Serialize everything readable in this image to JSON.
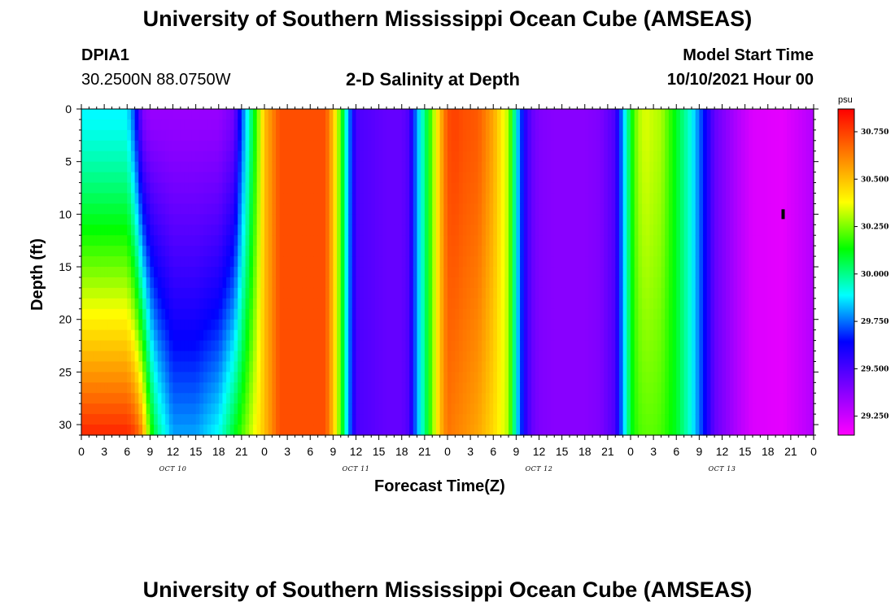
{
  "header": {
    "title": "University of Southern Mississippi Ocean Cube (AMSEAS)",
    "footer_title": "University of Southern Mississippi Ocean Cube (AMSEAS)",
    "station": "DPIA1",
    "coords": "30.2500N  88.0750W",
    "subtitle": "2-D Salinity at Depth",
    "model_start_label": "Model Start Time",
    "model_start_value": "10/10/2021 Hour 00"
  },
  "chart_data": {
    "type": "heatmap",
    "title": "2-D Salinity at Depth",
    "xlabel": "Forecast Time(Z)",
    "ylabel": "Depth (ft)",
    "x_unit": "hours",
    "x_range": [
      0,
      96
    ],
    "ylim": [
      0,
      31
    ],
    "y_inverted": true,
    "y_ticks": [
      0,
      5,
      10,
      15,
      20,
      25,
      30
    ],
    "x_tick_labels": [
      "0",
      "3",
      "6",
      "9",
      "12",
      "15",
      "18",
      "21",
      "0",
      "3",
      "6",
      "9",
      "12",
      "15",
      "18",
      "21",
      "0",
      "3",
      "6",
      "9",
      "12",
      "15",
      "18",
      "21",
      "0",
      "3",
      "6",
      "9",
      "12",
      "15",
      "18",
      "21",
      "0"
    ],
    "day_labels": [
      "OCT 10",
      "OCT 11",
      "OCT 12",
      "OCT 13"
    ],
    "colorbar": {
      "unit": "psu",
      "range": [
        29.15,
        30.87
      ],
      "ticks": [
        "30.750",
        "30.500",
        "30.250",
        "30.000",
        "29.750",
        "29.500",
        "29.250"
      ],
      "tick_values": [
        30.75,
        30.5,
        30.25,
        30.0,
        29.75,
        29.5,
        29.25
      ]
    },
    "time_hours": [
      0,
      6,
      7,
      8,
      9,
      10,
      11,
      12,
      15,
      18,
      20,
      21,
      22,
      23,
      24,
      26,
      30,
      32,
      33,
      34,
      35,
      36,
      40,
      42,
      43,
      44,
      45,
      46,
      47,
      48,
      49,
      50,
      52,
      54,
      56,
      57,
      58,
      59,
      60,
      62,
      64,
      66,
      68,
      70,
      71,
      72,
      73,
      74,
      75,
      76,
      78,
      80,
      82,
      83,
      84,
      85,
      86,
      88,
      92,
      96
    ],
    "surface_salinity": [
      29.88,
      29.88,
      29.7,
      29.4,
      29.35,
      29.35,
      29.35,
      29.35,
      29.35,
      29.35,
      29.42,
      29.7,
      29.95,
      30.2,
      30.5,
      30.72,
      30.72,
      30.72,
      30.5,
      30.2,
      29.8,
      29.5,
      29.45,
      29.45,
      29.5,
      29.8,
      30.0,
      30.25,
      30.5,
      30.72,
      30.75,
      30.72,
      30.7,
      30.55,
      30.3,
      29.9,
      29.6,
      29.45,
      29.4,
      29.38,
      29.38,
      29.38,
      29.4,
      29.5,
      29.8,
      30.1,
      30.3,
      30.35,
      30.32,
      30.3,
      30.1,
      29.9,
      29.6,
      29.45,
      29.4,
      29.35,
      29.3,
      29.22,
      29.2,
      29.3
    ],
    "bottom_salinity": [
      30.8,
      30.8,
      30.75,
      30.6,
      30.2,
      30.0,
      29.9,
      29.8,
      29.8,
      29.9,
      30.1,
      30.2,
      30.3,
      30.4,
      30.5,
      30.72,
      30.72,
      30.72,
      30.5,
      30.2,
      29.8,
      29.5,
      29.45,
      29.45,
      29.5,
      29.8,
      30.0,
      30.25,
      30.5,
      30.65,
      30.62,
      30.6,
      30.55,
      30.45,
      30.3,
      29.9,
      29.6,
      29.45,
      29.4,
      29.38,
      29.38,
      29.38,
      29.4,
      29.5,
      29.8,
      30.1,
      30.2,
      30.22,
      30.22,
      30.2,
      30.1,
      29.9,
      29.6,
      29.45,
      29.4,
      29.35,
      29.3,
      29.22,
      29.2,
      29.3
    ],
    "marker": {
      "hour": 92,
      "depth_ft": 10
    }
  },
  "colors": {
    "scale": [
      "#ff00ff",
      "#8000ff",
      "#0000ff",
      "#00ffff",
      "#00ff00",
      "#ffff00",
      "#ff8000",
      "#ff0000"
    ]
  }
}
